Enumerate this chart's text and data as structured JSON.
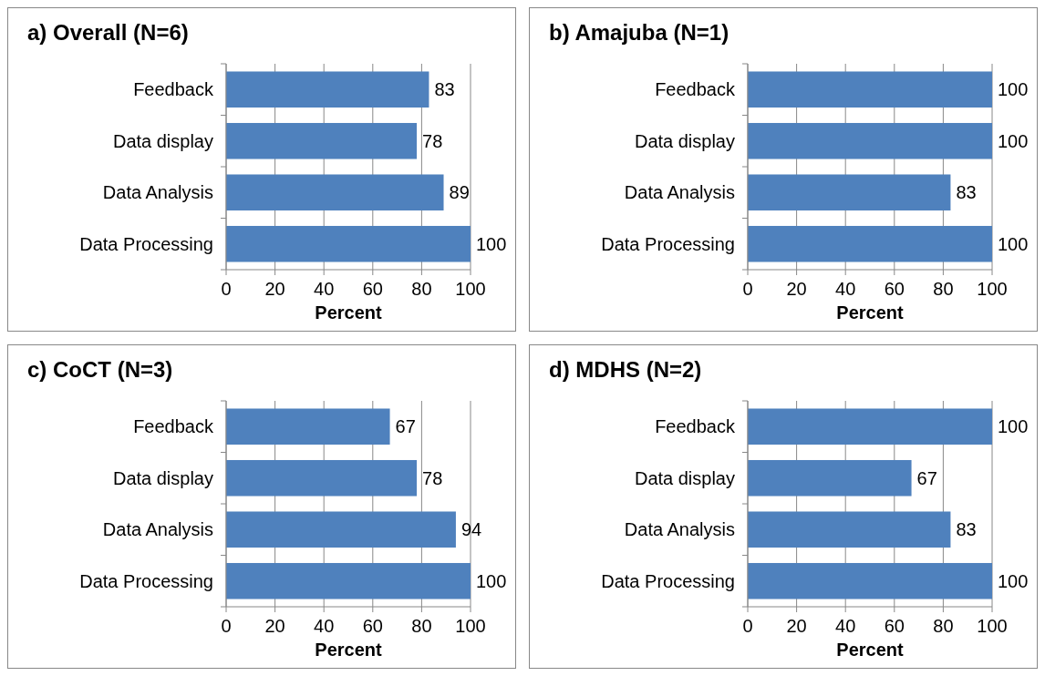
{
  "chart_data": [
    {
      "type": "bar",
      "orientation": "horizontal",
      "title": "a) Overall  (N=6)",
      "xlabel": "Percent",
      "categories": [
        "Feedback",
        "Data display",
        "Data Analysis",
        "Data Processing"
      ],
      "values": [
        83,
        78,
        89,
        100
      ],
      "color": "#4f81bd",
      "xlim": [
        0,
        100
      ],
      "xticks": [
        0,
        20,
        40,
        60,
        80,
        100
      ],
      "grid": "x",
      "data_labels": true
    },
    {
      "type": "bar",
      "orientation": "horizontal",
      "title": "b) Amajuba (N=1)",
      "xlabel": "Percent",
      "categories": [
        "Feedback",
        "Data display",
        "Data Analysis",
        "Data Processing"
      ],
      "values": [
        100,
        100,
        83,
        100
      ],
      "color": "#4f81bd",
      "xlim": [
        0,
        100
      ],
      "xticks": [
        0,
        20,
        40,
        60,
        80,
        100
      ],
      "grid": "x",
      "data_labels": true
    },
    {
      "type": "bar",
      "orientation": "horizontal",
      "title": "c) CoCT (N=3)",
      "xlabel": "Percent",
      "categories": [
        "Feedback",
        "Data display",
        "Data Analysis",
        "Data Processing"
      ],
      "values": [
        67,
        78,
        94,
        100
      ],
      "color": "#4f81bd",
      "xlim": [
        0,
        100
      ],
      "xticks": [
        0,
        20,
        40,
        60,
        80,
        100
      ],
      "grid": "x",
      "data_labels": true
    },
    {
      "type": "bar",
      "orientation": "horizontal",
      "title": "d) MDHS  (N=2)",
      "xlabel": "Percent",
      "categories": [
        "Feedback",
        "Data display",
        "Data Analysis",
        "Data Processing"
      ],
      "values": [
        100,
        67,
        83,
        100
      ],
      "color": "#4f81bd",
      "xlim": [
        0,
        100
      ],
      "xticks": [
        0,
        20,
        40,
        60,
        80,
        100
      ],
      "grid": "x",
      "data_labels": true
    }
  ]
}
